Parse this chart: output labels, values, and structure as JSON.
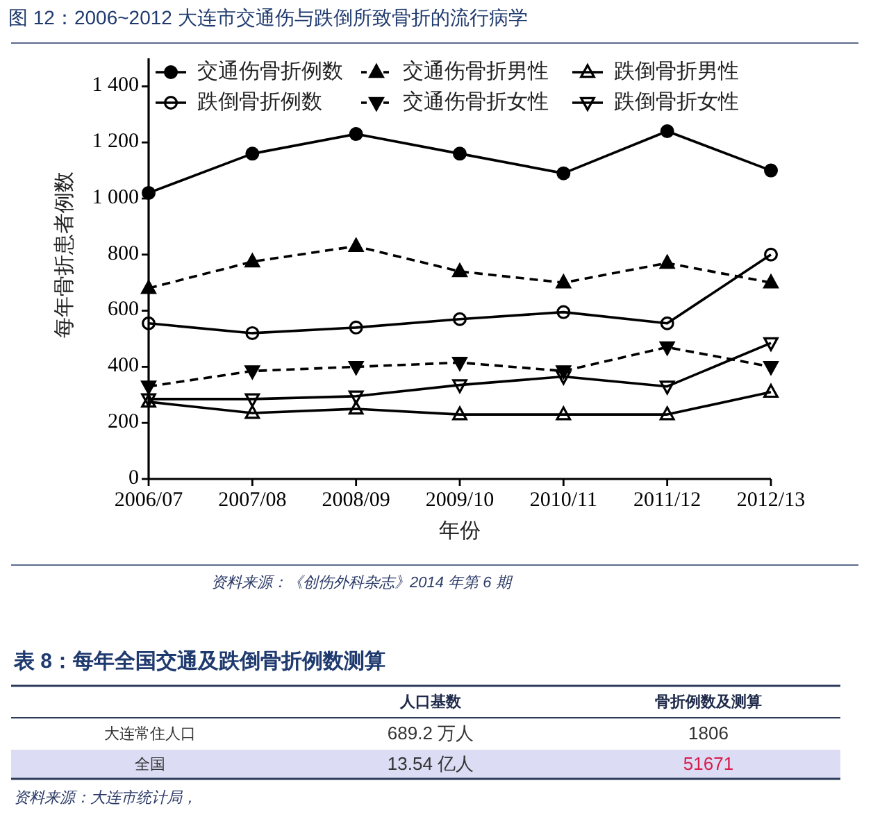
{
  "chart_data": [
    {
      "type": "line",
      "title": "图 12：2006~2012 大连市交通伤与跌倒所致骨折的流行病学",
      "xlabel": "年份",
      "ylabel": "每年骨折患者例数",
      "categories": [
        "2006/07",
        "2007/08",
        "2008/09",
        "2009/10",
        "2010/11",
        "2011/12",
        "2012/13"
      ],
      "ylim": [
        0,
        1500
      ],
      "yticks": [
        0,
        200,
        400,
        600,
        800,
        {
          "value": 1000,
          "label": "1 000"
        },
        {
          "value": 1200,
          "label": "1 200"
        },
        {
          "value": 1400,
          "label": "1 400"
        }
      ],
      "legend": "top",
      "grid": false,
      "series": [
        {
          "name": "交通伤骨折例数",
          "color": "#000000",
          "marker": "circle",
          "line_style": "solid",
          "values": [
            1020,
            1160,
            1230,
            1160,
            1090,
            1240,
            1100
          ]
        },
        {
          "name": "交通伤骨折男性",
          "color": "#000000",
          "marker": "triangle",
          "line_style": "dashed",
          "values": [
            680,
            775,
            830,
            740,
            700,
            770,
            700
          ]
        },
        {
          "name": "跌倒骨折男性",
          "color": "#000000",
          "marker": "triangle-open",
          "line_style": "solid",
          "values": [
            275,
            235,
            250,
            230,
            230,
            230,
            310
          ]
        },
        {
          "name": "跌倒骨折例数",
          "color": "#000000",
          "marker": "circle-open",
          "line_style": "solid",
          "values": [
            555,
            520,
            540,
            570,
            595,
            555,
            800
          ]
        },
        {
          "name": "交通伤骨折女性",
          "color": "#000000",
          "marker": "triangle-down",
          "line_style": "dashed",
          "values": [
            330,
            385,
            400,
            415,
            385,
            470,
            400
          ]
        },
        {
          "name": "跌倒骨折女性",
          "color": "#000000",
          "marker": "triangle-down-open",
          "line_style": "solid",
          "values": [
            285,
            285,
            295,
            335,
            365,
            330,
            485
          ]
        }
      ],
      "annotations": [
        "资料来源：《创伤外科杂志》2014 年第 6 期"
      ]
    },
    {
      "type": "other",
      "title": "表 8：每年全国交通及跌倒骨折例数测算",
      "annotations": [
        "人口基数",
        "骨折例数及测算",
        "大连常住人口",
        "689.2 万人",
        "1806",
        "全国",
        "13.54 亿人",
        "51671",
        "资料来源：大连市统计局，"
      ]
    }
  ]
}
